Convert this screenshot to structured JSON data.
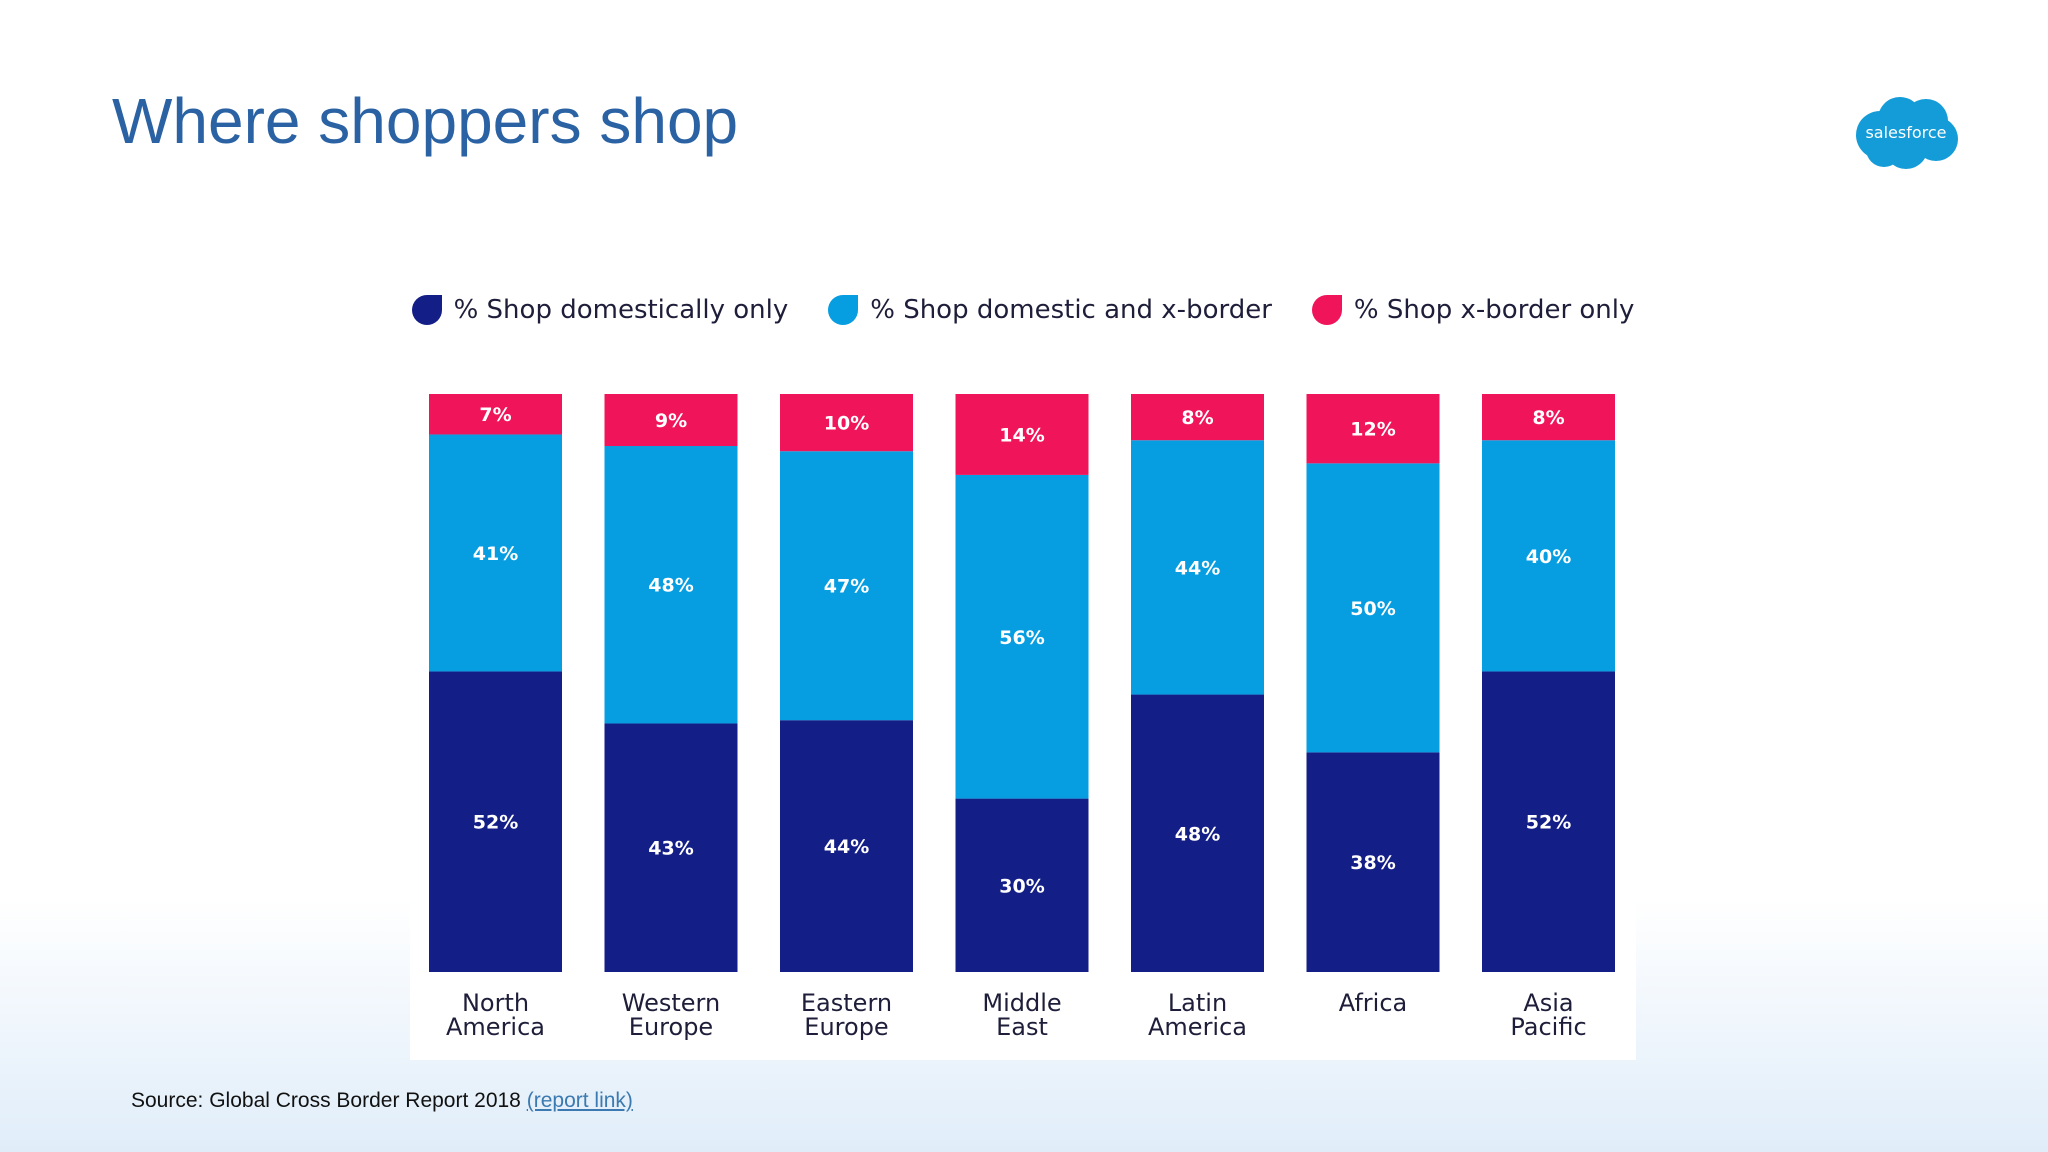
{
  "slide": {
    "title": "Where shoppers shop",
    "source_text": "Source: Global Cross Border Report 2018",
    "source_link": "(report link)"
  },
  "logo": {
    "text": "salesforce",
    "color": "#139cd8"
  },
  "colors": {
    "title": "#2a62a3",
    "domestic_only": "#141e87",
    "domestic_and_xborder": "#069de1",
    "xborder_only": "#f0145a"
  },
  "chart_data": {
    "type": "bar",
    "stacked": true,
    "categories": [
      "North America",
      "Western Europe",
      "Eastern Europe",
      "Middle East",
      "Latin America",
      "Africa",
      "Asia Pacific"
    ],
    "category_lines": [
      [
        "North",
        "America"
      ],
      [
        "Western",
        "Europe"
      ],
      [
        "Eastern",
        "Europe"
      ],
      [
        "Middle",
        "East"
      ],
      [
        "Latin",
        "America"
      ],
      [
        "Africa"
      ],
      [
        "Asia",
        "Pacific"
      ]
    ],
    "series": [
      {
        "name": "% Shop domestically only",
        "color": "#141e87",
        "values": [
          52,
          43,
          44,
          30,
          48,
          38,
          52
        ]
      },
      {
        "name": "% Shop domestic and x-border",
        "color": "#069de1",
        "values": [
          41,
          48,
          47,
          56,
          44,
          50,
          40
        ]
      },
      {
        "name": "% Shop x-border only",
        "color": "#f0145a",
        "values": [
          7,
          9,
          10,
          14,
          8,
          12,
          8
        ]
      }
    ],
    "value_suffix": "%",
    "legend_position": "top",
    "grid": false,
    "axes_visible": false
  }
}
